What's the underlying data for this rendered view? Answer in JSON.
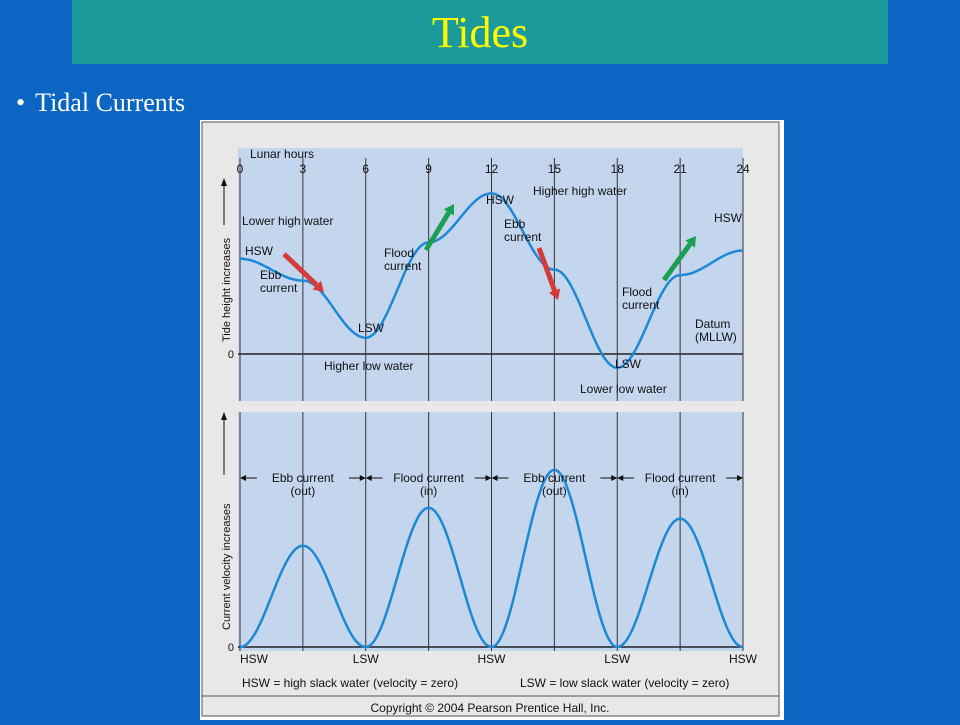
{
  "slide": {
    "title": "Tides",
    "bullet": "Tidal Currents",
    "colors": {
      "background": "#0a66c2",
      "title_bar": "#1a9a9a",
      "title_text": "#ffff00",
      "bullet_text": "#ffffff"
    }
  },
  "figure": {
    "panel_color": "#c3d6ee",
    "curve_color": "#1e88d4",
    "ebb_arrow_color": "#d63a3a",
    "flood_arrow_color": "#1aa050",
    "copyright": "Copyright © 2004 Pearson Prentice Hall, Inc.",
    "legend_hsw": "HSW = high slack water (velocity = zero)",
    "legend_lsw": "LSW = low slack water (velocity = zero)"
  },
  "chart_data": [
    {
      "type": "line",
      "xlabel": "Lunar hours",
      "ylabel": "Tide height increases",
      "x_ticks": [
        0,
        3,
        6,
        9,
        12,
        15,
        18,
        21,
        24
      ],
      "y_zero_label": "0",
      "x": [
        0,
        3,
        6,
        9,
        12,
        15,
        18,
        21,
        24
      ],
      "y": [
        1.7,
        1.3,
        0.25,
        2.0,
        2.9,
        1.5,
        -0.3,
        1.4,
        1.85
      ],
      "ylim": [
        -0.8,
        3.2
      ],
      "grid": true,
      "annotations": {
        "lower_high_water": "Lower high water",
        "hsw_left": "HSW",
        "ebb_left": "Ebb\ncurrent",
        "lsw_mid": "LSW",
        "higher_low_water": "Higher low water",
        "flood_left": "Flood\ncurrent",
        "hsw_peak": "HSW",
        "higher_high_water": "Higher high water",
        "ebb_right": "Ebb\ncurrent",
        "lsw_low": "LSW",
        "lower_low_water": "Lower low water",
        "flood_right": "Flood\ncurrent",
        "datum": "Datum\n(MLLW)",
        "hsw_right": "HSW"
      }
    },
    {
      "type": "line",
      "ylabel": "Current velocity increases",
      "y_zero_label": "0",
      "x": [
        0,
        3,
        6,
        9,
        12,
        15,
        18,
        21,
        24
      ],
      "y": [
        0,
        0.56,
        0,
        0.77,
        0,
        0.98,
        0,
        0.71,
        0
      ],
      "ylim": [
        0,
        1.3
      ],
      "grid": true,
      "bottom_labels": [
        "HSW",
        "LSW",
        "HSW",
        "LSW",
        "HSW"
      ],
      "periods": [
        {
          "label": "Ebb current\n(out)",
          "from": 0,
          "to": 6
        },
        {
          "label": "Flood current\n(in)",
          "from": 6,
          "to": 12
        },
        {
          "label": "Ebb current\n(out)",
          "from": 12,
          "to": 18
        },
        {
          "label": "Flood current\n(in)",
          "from": 18,
          "to": 24
        }
      ]
    }
  ]
}
